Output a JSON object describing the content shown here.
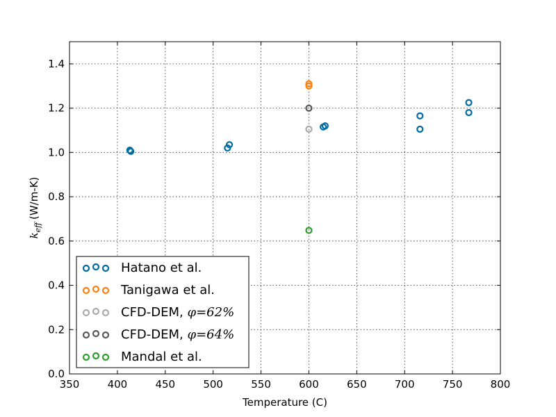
{
  "chart_data": {
    "type": "scatter",
    "title": "",
    "xlabel": "Temperature (C)",
    "ylabel_symbol": "k",
    "ylabel_subscript": "eff",
    "ylabel_unit": "(W/m-K)",
    "xlim": [
      350,
      800
    ],
    "ylim": [
      0.0,
      1.5
    ],
    "xticks": [
      "350",
      "400",
      "450",
      "500",
      "550",
      "600",
      "650",
      "700",
      "750",
      "800"
    ],
    "yticks": [
      "0.0",
      "0.2",
      "0.4",
      "0.6",
      "0.8",
      "1.0",
      "1.2",
      "1.4"
    ],
    "grid": true,
    "legend_position": "lower-left",
    "marker": "open-circle",
    "series": [
      {
        "name": "Hatano et al.",
        "legend_parts": [
          "Hatano et al."
        ],
        "color": "#006ba4",
        "points": [
          [
            413,
            1.01
          ],
          [
            414,
            1.005
          ],
          [
            515,
            1.02
          ],
          [
            517,
            1.035
          ],
          [
            615,
            1.115
          ],
          [
            617,
            1.12
          ],
          [
            716,
            1.165
          ],
          [
            716,
            1.105
          ],
          [
            767,
            1.225
          ],
          [
            767,
            1.18
          ]
        ]
      },
      {
        "name": "Tanigawa et al.",
        "legend_parts": [
          "Tanigawa et al."
        ],
        "color": "#ff800e",
        "points": [
          [
            600,
            1.31
          ],
          [
            600,
            1.3
          ]
        ]
      },
      {
        "name": "CFD-DEM, φ=62%",
        "legend_parts": [
          "CFD-DEM, ",
          "φ",
          "=62%"
        ],
        "color": "#ababab",
        "points": [
          [
            600,
            1.105
          ]
        ]
      },
      {
        "name": "CFD-DEM, φ=64%",
        "legend_parts": [
          "CFD-DEM, ",
          "φ",
          "=64%"
        ],
        "color": "#595959",
        "points": [
          [
            600,
            1.2
          ]
        ]
      },
      {
        "name": "Mandal et al.",
        "legend_parts": [
          "Mandal et al."
        ],
        "color": "#2ca02c",
        "points": [
          [
            600,
            0.648
          ]
        ]
      }
    ]
  }
}
